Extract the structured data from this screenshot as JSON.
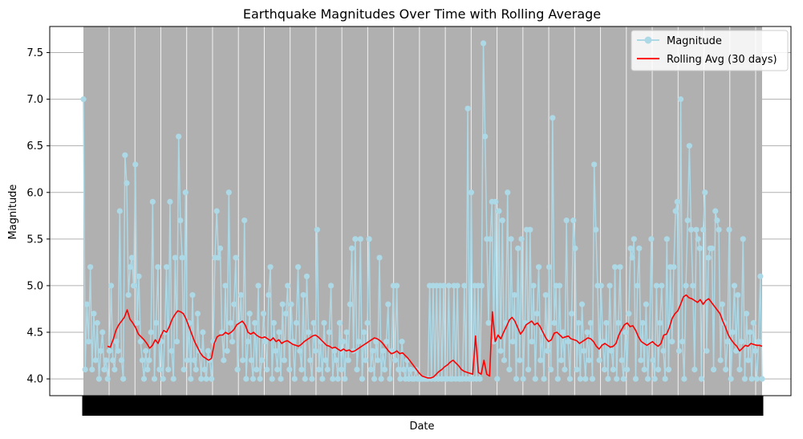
{
  "chart_data": {
    "type": "line",
    "title": "Earthquake Magnitudes Over Time with Rolling Average",
    "xlabel": "Date",
    "ylabel": "Magnitude",
    "ylim": [
      3.82,
      7.78
    ],
    "yticks": [
      "4.0",
      "4.5",
      "5.0",
      "5.5",
      "6.0",
      "6.5",
      "7.0",
      "7.5"
    ],
    "grid": "both",
    "legend_position": "top-right",
    "x_tick_labels_overlapping": true,
    "series": [
      {
        "name": "Magnitude",
        "color": "#add8e6",
        "marker": "circle",
        "values": [
          7.0,
          4.1,
          4.8,
          4.4,
          5.2,
          4.1,
          4.7,
          4.2,
          4.6,
          4.0,
          4.3,
          4.5,
          4.1,
          4.2,
          4.0,
          4.3,
          5.0,
          4.2,
          4.1,
          4.4,
          4.3,
          5.8,
          4.2,
          4.0,
          6.4,
          6.1,
          4.9,
          5.2,
          5.3,
          5.0,
          6.3,
          4.6,
          5.1,
          4.4,
          4.2,
          4.0,
          4.3,
          4.1,
          4.2,
          4.5,
          5.9,
          4.0,
          4.6,
          5.2,
          4.1,
          4.4,
          4.0,
          4.5,
          5.2,
          4.1,
          5.9,
          4.3,
          4.0,
          5.3,
          4.4,
          6.6,
          5.7,
          5.3,
          4.1,
          6.0,
          4.2,
          4.6,
          4.0,
          4.9,
          4.2,
          4.1,
          4.7,
          4.3,
          4.0,
          4.5,
          4.1,
          4.0,
          4.3,
          4.2,
          4.0,
          4.4,
          5.3,
          5.8,
          5.3,
          5.4,
          4.5,
          4.2,
          5.0,
          4.3,
          6.0,
          4.6,
          4.4,
          4.8,
          5.3,
          4.1,
          4.6,
          4.9,
          4.2,
          5.7,
          4.0,
          4.4,
          4.7,
          4.2,
          4.0,
          4.6,
          4.1,
          5.0,
          4.0,
          4.2,
          4.7,
          4.4,
          4.1,
          4.9,
          5.2,
          4.0,
          4.6,
          4.3,
          4.1,
          4.5,
          4.0,
          4.8,
          4.2,
          4.7,
          5.0,
          4.1,
          4.8,
          4.4,
          4.0,
          4.6,
          5.2,
          4.3,
          4.1,
          4.9,
          4.0,
          5.1,
          4.5,
          4.2,
          4.0,
          4.6,
          4.3,
          5.6,
          4.1,
          4.4,
          4.0,
          4.6,
          4.2,
          4.1,
          4.5,
          5.0,
          4.0,
          4.3,
          4.2,
          4.0,
          4.6,
          4.1,
          4.4,
          4.0,
          4.5,
          4.2,
          4.8,
          5.4,
          4.3,
          5.5,
          4.1,
          4.4,
          5.5,
          4.0,
          4.5,
          4.2,
          4.6,
          5.5,
          4.1,
          4.3,
          4.0,
          4.4,
          4.2,
          5.3,
          4.0,
          4.3,
          4.1,
          4.4,
          4.8,
          4.0,
          4.3,
          5.0,
          4.2,
          5.0,
          4.1,
          4.0,
          4.4,
          4.1,
          4.0,
          4.2,
          4.0,
          4.1,
          4.0,
          4.0,
          4.1,
          4.0,
          4.0,
          4.0,
          4.0,
          4.0,
          4.0,
          4.0,
          5.0,
          4.0,
          5.0,
          4.0,
          5.0,
          4.0,
          5.0,
          4.0,
          5.0,
          4.0,
          4.0,
          5.0,
          4.0,
          4.0,
          5.0,
          4.0,
          5.0,
          4.0,
          4.0,
          4.0,
          5.0,
          4.0,
          6.9,
          4.0,
          6.0,
          4.0,
          5.0,
          4.0,
          5.0,
          4.0,
          5.0,
          7.6,
          6.6,
          5.5,
          4.6,
          5.5,
          5.9,
          4.4,
          5.9,
          4.0,
          5.8,
          4.3,
          5.7,
          4.2,
          4.6,
          6.0,
          4.1,
          5.5,
          4.4,
          4.9,
          4.0,
          5.4,
          4.2,
          5.5,
          4.0,
          4.6,
          5.6,
          4.1,
          5.6,
          4.4,
          5.0,
          4.0,
          4.7,
          5.2,
          4.2,
          4.5,
          4.0,
          4.9,
          4.3,
          5.2,
          4.1,
          6.8,
          4.6,
          5.0,
          4.0,
          5.0,
          4.2,
          4.5,
          4.1,
          5.7,
          4.4,
          4.0,
          4.7,
          5.7,
          5.4,
          4.1,
          4.6,
          4.0,
          4.8,
          4.3,
          4.0,
          4.5,
          4.2,
          4.6,
          4.0,
          6.3,
          5.6,
          5.0,
          4.2,
          5.0,
          4.4,
          4.1,
          4.6,
          4.0,
          5.0,
          4.3,
          4.1,
          5.2,
          4.0,
          4.6,
          5.2,
          4.2,
          4.0,
          4.5,
          4.1,
          4.7,
          5.4,
          5.3,
          5.5,
          4.0,
          5.0,
          5.4,
          4.2,
          4.6,
          4.1,
          4.8,
          4.0,
          4.4,
          5.5,
          4.2,
          4.0,
          5.0,
          4.1,
          4.6,
          5.0,
          4.3,
          4.0,
          5.5,
          4.1,
          5.2,
          4.4,
          5.2,
          5.8,
          5.9,
          4.3,
          7.0,
          4.4,
          4.0,
          5.0,
          5.7,
          6.5,
          5.6,
          5.0,
          4.1,
          5.6,
          5.5,
          5.4,
          4.0,
          5.6,
          6.0,
          4.3,
          5.3,
          5.4,
          5.4,
          4.1,
          5.8,
          5.7,
          5.6,
          4.2,
          4.8,
          4.6,
          4.1,
          4.4,
          5.6,
          4.0,
          4.5,
          5.0,
          4.3,
          4.9,
          4.1,
          4.4,
          5.5,
          4.0,
          4.7,
          4.2,
          4.5,
          4.0,
          4.6,
          4.3,
          4.0,
          4.4,
          5.1,
          4.0
        ]
      },
      {
        "name": "Rolling Avg (30 days)",
        "color": "#ff0000",
        "marker": "none",
        "values": [
          4.35,
          4.34,
          4.42,
          4.52,
          4.58,
          4.62,
          4.66,
          4.74,
          4.64,
          4.6,
          4.55,
          4.48,
          4.45,
          4.42,
          4.38,
          4.33,
          4.36,
          4.42,
          4.38,
          4.46,
          4.52,
          4.5,
          4.56,
          4.64,
          4.69,
          4.73,
          4.72,
          4.7,
          4.64,
          4.56,
          4.48,
          4.4,
          4.34,
          4.28,
          4.24,
          4.22,
          4.2,
          4.22,
          4.38,
          4.45,
          4.47,
          4.47,
          4.5,
          4.48,
          4.5,
          4.53,
          4.58,
          4.6,
          4.62,
          4.58,
          4.5,
          4.48,
          4.5,
          4.47,
          4.45,
          4.44,
          4.45,
          4.43,
          4.41,
          4.44,
          4.4,
          4.42,
          4.38,
          4.4,
          4.41,
          4.39,
          4.37,
          4.36,
          4.35,
          4.37,
          4.4,
          4.42,
          4.44,
          4.46,
          4.47,
          4.45,
          4.42,
          4.39,
          4.36,
          4.35,
          4.33,
          4.34,
          4.32,
          4.3,
          4.32,
          4.3,
          4.31,
          4.29,
          4.3,
          4.32,
          4.34,
          4.36,
          4.38,
          4.4,
          4.42,
          4.44,
          4.43,
          4.41,
          4.38,
          4.34,
          4.3,
          4.27,
          4.28,
          4.3,
          4.27,
          4.28,
          4.25,
          4.22,
          4.18,
          4.14,
          4.1,
          4.06,
          4.03,
          4.02,
          4.01,
          4.01,
          4.02,
          4.05,
          4.08,
          4.1,
          4.13,
          4.15,
          4.18,
          4.2,
          4.17,
          4.14,
          4.1,
          4.08,
          4.07,
          4.06,
          4.05,
          4.46,
          4.07,
          4.05,
          4.2,
          4.05,
          4.03,
          4.72,
          4.4,
          4.47,
          4.43,
          4.5,
          4.56,
          4.63,
          4.66,
          4.62,
          4.55,
          4.48,
          4.52,
          4.58,
          4.6,
          4.62,
          4.58,
          4.6,
          4.56,
          4.5,
          4.44,
          4.4,
          4.42,
          4.49,
          4.5,
          4.47,
          4.44,
          4.45,
          4.46,
          4.43,
          4.42,
          4.41,
          4.38,
          4.4,
          4.42,
          4.44,
          4.43,
          4.4,
          4.35,
          4.32,
          4.36,
          4.38,
          4.36,
          4.34,
          4.35,
          4.38,
          4.47,
          4.53,
          4.58,
          4.6,
          4.56,
          4.57,
          4.52,
          4.45,
          4.4,
          4.38,
          4.36,
          4.38,
          4.4,
          4.37,
          4.35,
          4.38,
          4.47,
          4.48,
          4.55,
          4.65,
          4.7,
          4.73,
          4.8,
          4.88,
          4.9,
          4.87,
          4.86,
          4.84,
          4.82,
          4.85,
          4.8,
          4.84,
          4.86,
          4.82,
          4.78,
          4.74,
          4.7,
          4.62,
          4.55,
          4.47,
          4.42,
          4.38,
          4.35,
          4.3,
          4.33,
          4.36,
          4.35,
          4.38,
          4.37,
          4.36,
          4.36,
          4.35
        ]
      }
    ]
  },
  "plot_bg": "#b0b0b0"
}
